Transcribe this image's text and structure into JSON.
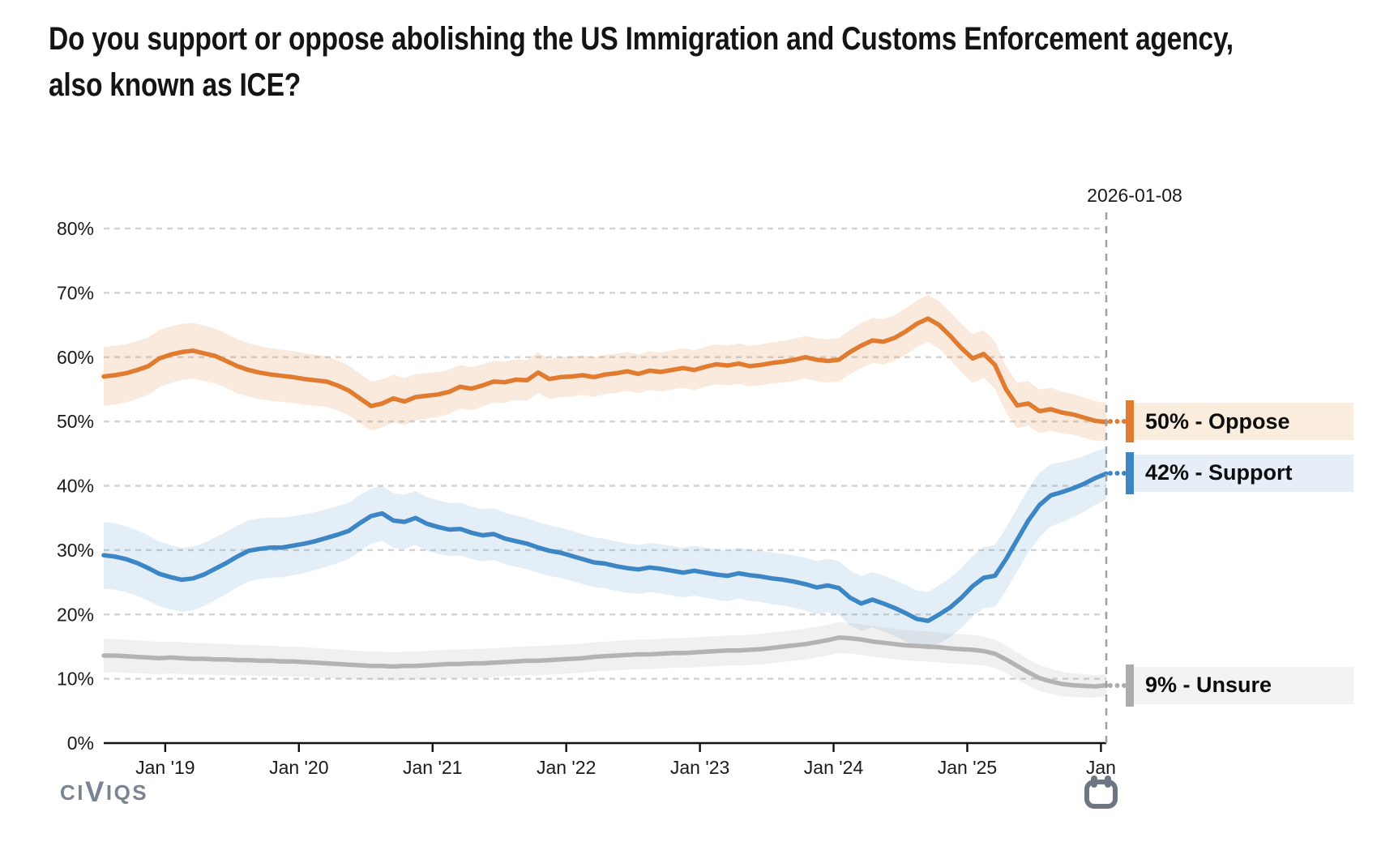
{
  "question_title": {
    "line1": "Do you support or oppose abolishing the US Immigration and Customs Enforcement agency,",
    "line2": "also known as ICE?"
  },
  "branding": {
    "logo_text_start": "CI",
    "logo_text_v": "V",
    "logo_text_end": "IQS"
  },
  "chart_data": {
    "type": "line",
    "title": "Do you support or oppose abolishing the US Immigration and Customs Enforcement agency, also known as ICE?",
    "current_date_label": "2026-01-08",
    "x_domain": [
      2018.54,
      2026.04
    ],
    "y_domain": [
      0,
      80
    ],
    "points_per_year": 12,
    "grid": "horizontal-dashed",
    "legend_position": "right",
    "axis_color": "#111111",
    "gridline_color": "#d4d4d4",
    "cursor_line_color": "#9aa1a8",
    "y_ticks": [
      {
        "value": 0,
        "label": "0%"
      },
      {
        "value": 10,
        "label": "10%"
      },
      {
        "value": 20,
        "label": "20%"
      },
      {
        "value": 30,
        "label": "30%"
      },
      {
        "value": 40,
        "label": "40%"
      },
      {
        "value": 50,
        "label": "50%"
      },
      {
        "value": 60,
        "label": "60%"
      },
      {
        "value": 70,
        "label": "70%"
      },
      {
        "value": 80,
        "label": "80%"
      }
    ],
    "x_ticks": [
      {
        "t": 2019.0,
        "label": "Jan '19"
      },
      {
        "t": 2020.0,
        "label": "Jan '20"
      },
      {
        "t": 2021.0,
        "label": "Jan '21"
      },
      {
        "t": 2022.0,
        "label": "Jan '22"
      },
      {
        "t": 2023.0,
        "label": "Jan '23"
      },
      {
        "t": 2024.0,
        "label": "Jan '24"
      },
      {
        "t": 2025.0,
        "label": "Jan '25"
      },
      {
        "t": 2026.0,
        "label": "Jan"
      }
    ],
    "series": [
      {
        "name": "Oppose",
        "end_value": 50,
        "end_label": "50% - Oppose",
        "color": "#e07b30",
        "band_color": "rgba(224,123,48,0.16)",
        "legend_bg": "#fbeddd",
        "values": [
          57.0,
          57.2,
          57.5,
          58.0,
          58.6,
          59.8,
          60.4,
          60.8,
          61.0,
          60.6,
          60.2,
          59.4,
          58.6,
          58.0,
          57.6,
          57.3,
          57.1,
          56.9,
          56.6,
          56.4,
          56.2,
          55.6,
          54.8,
          53.6,
          52.4,
          52.8,
          53.6,
          53.1,
          53.8,
          54.0,
          54.2,
          54.6,
          55.4,
          55.1,
          55.6,
          56.2,
          56.1,
          56.5,
          56.4,
          57.6,
          56.6,
          56.9,
          57.0,
          57.2,
          56.9,
          57.3,
          57.5,
          57.8,
          57.4,
          57.9,
          57.7,
          58.0,
          58.3,
          58.0,
          58.5,
          58.9,
          58.7,
          59.0,
          58.6,
          58.8,
          59.1,
          59.3,
          59.6,
          60.0,
          59.6,
          59.4,
          59.6,
          60.8,
          61.8,
          62.6,
          62.4,
          63.0,
          64.0,
          65.2,
          66.0,
          65.0,
          63.3,
          61.4,
          59.8,
          60.5,
          58.8,
          55.0,
          52.5,
          52.8,
          51.6,
          51.9,
          51.4,
          51.1,
          50.6,
          50.1,
          49.9
        ],
        "band_halfwidth_points": [
          [
            0,
            4.6
          ],
          [
            12,
            4.2
          ],
          [
            24,
            3.8
          ],
          [
            36,
            3.2
          ],
          [
            48,
            3.0
          ],
          [
            60,
            3.2
          ],
          [
            72,
            3.6
          ],
          [
            78,
            3.8
          ],
          [
            84,
            3.4
          ],
          [
            90,
            3.0
          ]
        ]
      },
      {
        "name": "Support",
        "end_value": 42,
        "end_label": "42% - Support",
        "color": "#3d86c6",
        "band_color": "rgba(61,134,198,0.14)",
        "legend_bg": "#e6eff8",
        "values": [
          29.2,
          29.0,
          28.6,
          28.0,
          27.2,
          26.3,
          25.8,
          25.4,
          25.6,
          26.2,
          27.1,
          28.0,
          29.0,
          29.9,
          30.2,
          30.4,
          30.4,
          30.7,
          31.0,
          31.4,
          31.9,
          32.4,
          33.0,
          34.2,
          35.3,
          35.7,
          34.6,
          34.4,
          35.0,
          34.1,
          33.6,
          33.2,
          33.3,
          32.7,
          32.3,
          32.5,
          31.8,
          31.4,
          31.0,
          30.4,
          29.9,
          29.6,
          29.1,
          28.6,
          28.1,
          27.9,
          27.5,
          27.2,
          27.0,
          27.3,
          27.1,
          26.8,
          26.5,
          26.8,
          26.5,
          26.2,
          26.0,
          26.4,
          26.1,
          25.9,
          25.6,
          25.4,
          25.1,
          24.7,
          24.2,
          24.5,
          24.1,
          22.6,
          21.7,
          22.3,
          21.7,
          21.0,
          20.2,
          19.3,
          19.0,
          20.0,
          21.1,
          22.6,
          24.4,
          25.7,
          26.0,
          28.6,
          31.6,
          34.6,
          37.0,
          38.5,
          39.0,
          39.6,
          40.3,
          41.2,
          41.9
        ],
        "band_halfwidth_points": [
          [
            0,
            5.2
          ],
          [
            12,
            4.8
          ],
          [
            24,
            4.3
          ],
          [
            36,
            4.0
          ],
          [
            48,
            3.8
          ],
          [
            60,
            4.0
          ],
          [
            72,
            4.4
          ],
          [
            84,
            5.0
          ],
          [
            90,
            4.0
          ]
        ]
      },
      {
        "name": "Unsure",
        "end_value": 9,
        "end_label": "9% - Unsure",
        "color": "#b3b3b3",
        "band_color": "rgba(160,160,160,0.16)",
        "legend_bg": "#f3f3f3",
        "values": [
          13.6,
          13.6,
          13.5,
          13.4,
          13.3,
          13.2,
          13.3,
          13.2,
          13.1,
          13.1,
          13.0,
          13.0,
          12.9,
          12.9,
          12.8,
          12.8,
          12.7,
          12.7,
          12.6,
          12.5,
          12.4,
          12.3,
          12.2,
          12.1,
          12.0,
          12.0,
          11.9,
          12.0,
          12.0,
          12.1,
          12.2,
          12.3,
          12.3,
          12.4,
          12.4,
          12.5,
          12.6,
          12.7,
          12.8,
          12.8,
          12.9,
          13.0,
          13.1,
          13.2,
          13.4,
          13.5,
          13.6,
          13.7,
          13.8,
          13.8,
          13.9,
          14.0,
          14.0,
          14.1,
          14.2,
          14.3,
          14.4,
          14.4,
          14.5,
          14.6,
          14.8,
          15.0,
          15.2,
          15.4,
          15.7,
          16.0,
          16.4,
          16.3,
          16.1,
          15.8,
          15.6,
          15.4,
          15.2,
          15.1,
          15.0,
          14.9,
          14.7,
          14.6,
          14.5,
          14.3,
          13.9,
          13.0,
          12.0,
          11.0,
          10.1,
          9.6,
          9.2,
          9.0,
          8.9,
          8.8,
          9.0
        ],
        "band_halfwidth_points": [
          [
            0,
            2.6
          ],
          [
            24,
            2.2
          ],
          [
            48,
            2.3
          ],
          [
            66,
            2.4
          ],
          [
            78,
            2.3
          ],
          [
            84,
            2.0
          ],
          [
            90,
            1.7
          ]
        ]
      }
    ]
  }
}
